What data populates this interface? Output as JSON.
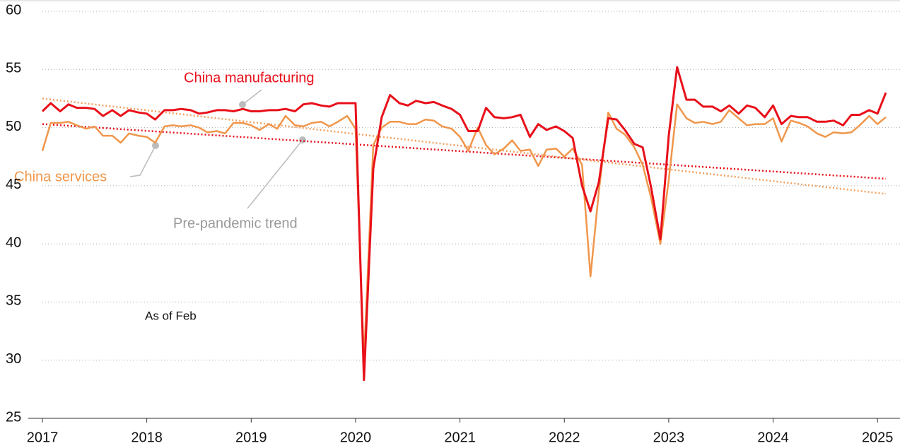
{
  "chart_data": {
    "type": "line",
    "x": [
      2017,
      2017.08,
      2017.17,
      2017.25,
      2017.33,
      2017.42,
      2017.5,
      2017.58,
      2017.67,
      2017.75,
      2017.83,
      2017.92,
      2018,
      2018.08,
      2018.17,
      2018.25,
      2018.33,
      2018.42,
      2018.5,
      2018.58,
      2018.67,
      2018.75,
      2018.83,
      2018.92,
      2019,
      2019.08,
      2019.17,
      2019.25,
      2019.33,
      2019.42,
      2019.5,
      2019.58,
      2019.67,
      2019.75,
      2019.83,
      2019.92,
      2020,
      2020.08,
      2020.17,
      2020.25,
      2020.33,
      2020.42,
      2020.5,
      2020.58,
      2020.67,
      2020.75,
      2020.83,
      2020.92,
      2021,
      2021.08,
      2021.17,
      2021.25,
      2021.33,
      2021.42,
      2021.5,
      2021.58,
      2021.67,
      2021.75,
      2021.83,
      2021.92,
      2022,
      2022.08,
      2022.17,
      2022.25,
      2022.33,
      2022.42,
      2022.5,
      2022.58,
      2022.67,
      2022.75,
      2022.83,
      2022.92,
      2023,
      2023.08,
      2023.17,
      2023.25,
      2023.33,
      2023.42,
      2023.5,
      2023.58,
      2023.67,
      2023.75,
      2023.83,
      2023.92,
      2024,
      2024.08,
      2024.17,
      2024.25,
      2024.33,
      2024.42,
      2024.5,
      2024.58,
      2024.67,
      2024.75,
      2024.83,
      2024.92,
      2025,
      2025.08
    ],
    "series": [
      {
        "name": "China manufacturing",
        "color": "#e8101a",
        "values": [
          51.4,
          52.1,
          51.4,
          52.0,
          51.7,
          51.7,
          51.6,
          51.0,
          51.5,
          51.0,
          51.5,
          51.3,
          51.2,
          50.7,
          51.5,
          51.5,
          51.6,
          51.5,
          51.2,
          51.3,
          51.5,
          51.5,
          51.4,
          51.6,
          51.4,
          51.4,
          51.5,
          51.5,
          51.6,
          51.4,
          52.0,
          52.1,
          51.9,
          51.8,
          52.1,
          52.1,
          52.1,
          28.3,
          46.5,
          50.9,
          52.8,
          52.1,
          51.9,
          52.3,
          52.1,
          52.2,
          51.9,
          51.6,
          51.1,
          49.7,
          49.7,
          51.7,
          50.9,
          50.8,
          50.9,
          51.1,
          49.2,
          50.3,
          49.8,
          50.1,
          49.7,
          49.1,
          45.0,
          42.8,
          45.3,
          50.8,
          50.7,
          49.8,
          48.6,
          48.3,
          44.9,
          40.4,
          49.3,
          55.2,
          52.4,
          52.4,
          51.8,
          51.8,
          51.4,
          51.9,
          51.2,
          51.9,
          51.7,
          50.9,
          51.9,
          50.3,
          51.0,
          50.9,
          50.9,
          50.5,
          50.5,
          50.6,
          50.2,
          51.1,
          51.1,
          51.5,
          51.2,
          53.0
        ]
      },
      {
        "name": "China services",
        "color": "#f0964b",
        "values": [
          48.0,
          50.4,
          50.4,
          50.5,
          50.2,
          49.9,
          50.1,
          49.3,
          49.3,
          48.7,
          49.5,
          49.3,
          49.2,
          48.7,
          50.1,
          50.2,
          50.1,
          50.2,
          50.0,
          49.6,
          49.7,
          49.5,
          50.4,
          50.4,
          50.2,
          49.8,
          50.3,
          49.9,
          51.0,
          50.2,
          50.1,
          50.4,
          50.5,
          50.1,
          50.5,
          51.0,
          49.9,
          30.0,
          48.5,
          50.0,
          50.5,
          50.5,
          50.3,
          50.3,
          50.7,
          50.6,
          50.1,
          49.9,
          49.2,
          48.0,
          50.0,
          48.5,
          47.7,
          48.2,
          48.9,
          48.0,
          48.1,
          46.7,
          48.1,
          48.2,
          47.5,
          48.2,
          46.8,
          37.2,
          44.5,
          51.3,
          49.9,
          49.4,
          48.3,
          46.8,
          44.0,
          40.0,
          45.5,
          52.0,
          50.8,
          50.4,
          50.5,
          50.3,
          50.5,
          51.5,
          50.8,
          50.2,
          50.3,
          50.3,
          50.8,
          48.8,
          50.6,
          50.4,
          50.1,
          49.5,
          49.2,
          49.6,
          49.5,
          49.6,
          50.2,
          51.0,
          50.3,
          50.9
        ]
      }
    ],
    "trends": [
      {
        "color": "#e8101a",
        "x": [
          2017,
          2025.08
        ],
        "values": [
          50.3,
          45.6
        ]
      },
      {
        "color": "#f0a060",
        "x": [
          2017,
          2025.08
        ],
        "values": [
          52.5,
          44.3
        ]
      }
    ],
    "annotations": [
      "Pre-pandemic trend",
      "As of Feb"
    ],
    "xlim": [
      2017,
      2025.08
    ],
    "xticks": [
      2017,
      2018,
      2019,
      2020,
      2021,
      2022,
      2023,
      2024,
      2025
    ],
    "ylim": [
      25,
      60
    ],
    "yticks": [
      25,
      30,
      35,
      40,
      45,
      50,
      55,
      60
    ],
    "grid": true
  }
}
